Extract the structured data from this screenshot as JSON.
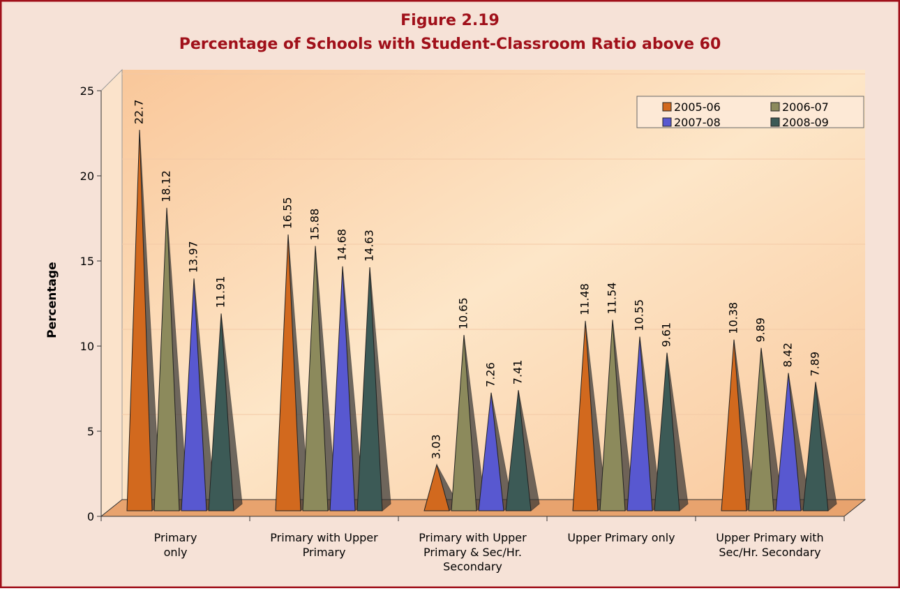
{
  "chart_data": {
    "type": "bar",
    "title": "Figure 2.19",
    "subtitle": "Percentage of Schools with Student-Classroom Ratio above 60",
    "y_label": "Percentage",
    "categories": [
      "Primary\nonly",
      "Primary with Upper\nPrimary",
      "Primary with Upper\nPrimary & Sec/Hr.\nSecondary",
      "Upper Primary only",
      "Upper Primary with\nSec/Hr. Secondary"
    ],
    "series": [
      {
        "name": "2005-06",
        "color": "#d2691e",
        "values": [
          22.7,
          16.55,
          3.03,
          11.48,
          10.38
        ]
      },
      {
        "name": "2006-07",
        "color": "#8c8a5c",
        "values": [
          18.12,
          15.88,
          10.65,
          11.54,
          9.89
        ]
      },
      {
        "name": "2007-08",
        "color": "#5858d0",
        "values": [
          13.97,
          14.68,
          7.26,
          10.55,
          8.42
        ]
      },
      {
        "name": "2008-09",
        "color": "#3c5a56",
        "values": [
          11.91,
          14.63,
          7.41,
          9.61,
          7.89
        ]
      }
    ],
    "ylim": [
      0,
      25
    ],
    "yticks": [
      0,
      5,
      10,
      15,
      20,
      25
    ],
    "grid": true,
    "legend": "top-right"
  }
}
